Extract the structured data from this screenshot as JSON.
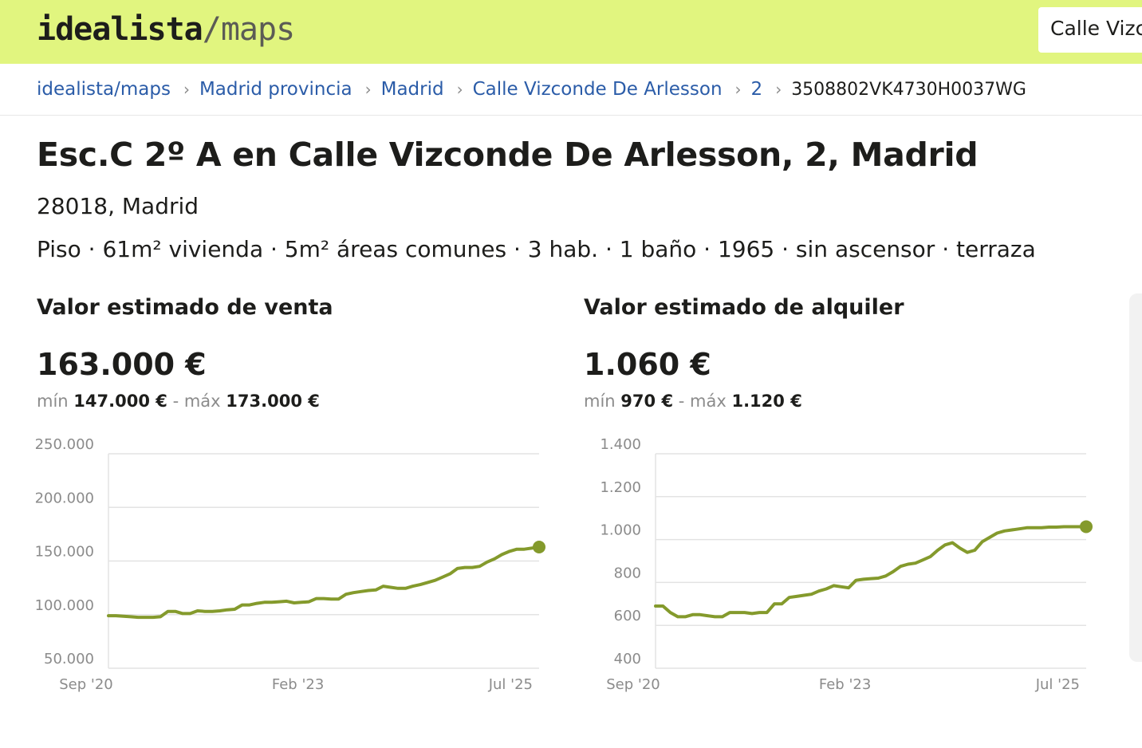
{
  "header": {
    "logo_main": "idealista",
    "logo_slash": "/",
    "logo_suffix": "maps",
    "search_value": "Calle Vizc"
  },
  "breadcrumb": {
    "items": [
      "idealista/maps",
      "Madrid provincia",
      "Madrid",
      "Calle Vizconde De Arlesson",
      "2"
    ],
    "current": "3508802VK4730H0037WG"
  },
  "property": {
    "title": "Esc.C 2º A en Calle Vizconde De Arlesson, 2, Madrid",
    "zip": "28018, Madrid",
    "features": "Piso · 61m² vivienda · 5m² áreas comunes · 3 hab. · 1 baño · 1965 · sin ascensor · terraza"
  },
  "sale": {
    "label": "Valor estimado de venta",
    "value": "163.000 €",
    "min_label": "mín",
    "min": "147.000 €",
    "sep": "-",
    "max_label": "máx",
    "max": "173.000 €"
  },
  "rent": {
    "label": "Valor estimado de alquiler",
    "value": "1.060 €",
    "min_label": "mín",
    "min": "970 €",
    "sep": "-",
    "max_label": "máx",
    "max": "1.120 €"
  },
  "colors": {
    "accent": "#e1f57f",
    "line": "#849a2c",
    "link": "#2b5ca8"
  },
  "chart_data": [
    {
      "type": "line",
      "title": "",
      "xlabel": "",
      "ylabel": "",
      "x_ticks": [
        "Sep '20",
        "Feb '23",
        "Jul '25"
      ],
      "y_ticks": [
        "50.000",
        "100.000",
        "150.000",
        "200.000",
        "250.000"
      ],
      "ylim": [
        50000,
        250000
      ],
      "grid": true,
      "x": [
        "2020-09",
        "2020-10",
        "2020-11",
        "2020-12",
        "2021-01",
        "2021-02",
        "2021-03",
        "2021-04",
        "2021-05",
        "2021-06",
        "2021-07",
        "2021-08",
        "2021-09",
        "2021-10",
        "2021-11",
        "2021-12",
        "2022-01",
        "2022-02",
        "2022-03",
        "2022-04",
        "2022-05",
        "2022-06",
        "2022-07",
        "2022-08",
        "2022-09",
        "2022-10",
        "2022-11",
        "2022-12",
        "2023-01",
        "2023-02",
        "2023-03",
        "2023-04",
        "2023-05",
        "2023-06",
        "2023-07",
        "2023-08",
        "2023-09",
        "2023-10",
        "2023-11",
        "2023-12",
        "2024-01",
        "2024-02",
        "2024-03",
        "2024-04",
        "2024-05",
        "2024-06",
        "2024-07",
        "2024-08",
        "2024-09",
        "2024-10",
        "2024-11",
        "2024-12",
        "2025-01",
        "2025-02",
        "2025-03",
        "2025-04",
        "2025-05",
        "2025-06",
        "2025-07"
      ],
      "values": [
        99000,
        99000,
        98500,
        98000,
        97500,
        97500,
        97500,
        98000,
        103000,
        103000,
        101000,
        101000,
        103500,
        103000,
        103000,
        103500,
        104500,
        105000,
        109000,
        109000,
        110500,
        111500,
        111500,
        112000,
        112500,
        111000,
        111500,
        112000,
        115000,
        115000,
        114500,
        114500,
        119000,
        120500,
        121500,
        122500,
        123000,
        126500,
        125500,
        124500,
        124500,
        126500,
        128000,
        130000,
        132000,
        135000,
        138000,
        143000,
        144000,
        144000,
        145000,
        149000,
        152000,
        156000,
        159000,
        161000,
        161000,
        162000,
        163000
      ],
      "series": [
        {
          "name": "",
          "color": "#849a2c"
        }
      ]
    },
    {
      "type": "line",
      "title": "",
      "xlabel": "",
      "ylabel": "",
      "x_ticks": [
        "Sep '20",
        "Feb '23",
        "Jul '25"
      ],
      "y_ticks": [
        "400",
        "600",
        "800",
        "1.000",
        "1.200",
        "1.400"
      ],
      "ylim": [
        400,
        1400
      ],
      "grid": true,
      "x": [
        "2020-09",
        "2020-10",
        "2020-11",
        "2020-12",
        "2021-01",
        "2021-02",
        "2021-03",
        "2021-04",
        "2021-05",
        "2021-06",
        "2021-07",
        "2021-08",
        "2021-09",
        "2021-10",
        "2021-11",
        "2021-12",
        "2022-01",
        "2022-02",
        "2022-03",
        "2022-04",
        "2022-05",
        "2022-06",
        "2022-07",
        "2022-08",
        "2022-09",
        "2022-10",
        "2022-11",
        "2022-12",
        "2023-01",
        "2023-02",
        "2023-03",
        "2023-04",
        "2023-05",
        "2023-06",
        "2023-07",
        "2023-08",
        "2023-09",
        "2023-10",
        "2023-11",
        "2023-12",
        "2024-01",
        "2024-02",
        "2024-03",
        "2024-04",
        "2024-05",
        "2024-06",
        "2024-07",
        "2024-08",
        "2024-09",
        "2024-10",
        "2024-11",
        "2024-12",
        "2025-01",
        "2025-02",
        "2025-03",
        "2025-04",
        "2025-05",
        "2025-06",
        "2025-07"
      ],
      "values": [
        690,
        690,
        660,
        640,
        640,
        650,
        650,
        645,
        640,
        640,
        660,
        660,
        660,
        655,
        660,
        660,
        700,
        700,
        730,
        735,
        740,
        745,
        760,
        770,
        785,
        780,
        775,
        810,
        815,
        818,
        820,
        830,
        850,
        875,
        885,
        890,
        905,
        920,
        950,
        975,
        985,
        960,
        940,
        950,
        990,
        1010,
        1030,
        1040,
        1045,
        1050,
        1055,
        1055,
        1055,
        1058,
        1058,
        1060,
        1060,
        1060,
        1060
      ],
      "series": [
        {
          "name": "",
          "color": "#849a2c"
        }
      ]
    }
  ]
}
